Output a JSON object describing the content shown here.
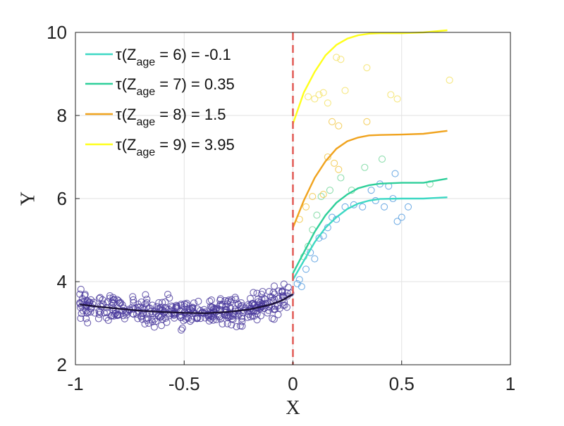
{
  "chart_data": {
    "type": "scatter",
    "xlabel": "X",
    "ylabel": "Y",
    "xlim": [
      -1,
      1
    ],
    "ylim": [
      2,
      10
    ],
    "xticks": [
      -1,
      -0.5,
      0,
      0.5,
      1
    ],
    "yticks": [
      2,
      4,
      6,
      8,
      10
    ],
    "xtick_labels": [
      "-1",
      "-0.5",
      "0",
      "0.5",
      "1"
    ],
    "ytick_labels": [
      "2",
      "4",
      "6",
      "8",
      "10"
    ],
    "grid": true,
    "legend_position": "top-left",
    "cutoff": {
      "x": 0,
      "color": "#e0554f",
      "style": "dashed"
    },
    "control_curve": {
      "color": "#1a1036",
      "points": [
        [
          -0.98,
          3.45
        ],
        [
          -0.9,
          3.4
        ],
        [
          -0.8,
          3.35
        ],
        [
          -0.7,
          3.3
        ],
        [
          -0.6,
          3.27
        ],
        [
          -0.5,
          3.25
        ],
        [
          -0.4,
          3.24
        ],
        [
          -0.3,
          3.27
        ],
        [
          -0.2,
          3.33
        ],
        [
          -0.1,
          3.45
        ],
        [
          -0.05,
          3.55
        ],
        [
          0,
          3.7
        ]
      ]
    },
    "control_scatter": {
      "color": "#4a3a9c",
      "x_range": [
        -0.98,
        -0.01
      ],
      "n": 400,
      "noise": 0.22
    },
    "series": [
      {
        "name_prefix": "τ(Z",
        "name_sub": "age",
        "name_suffix": " = 6) = -0.1",
        "color": "#3dd8c4",
        "points": [
          [
            0.0,
            4.05
          ],
          [
            0.05,
            4.5
          ],
          [
            0.1,
            4.95
          ],
          [
            0.15,
            5.3
          ],
          [
            0.2,
            5.55
          ],
          [
            0.25,
            5.75
          ],
          [
            0.3,
            5.88
          ],
          [
            0.35,
            5.95
          ],
          [
            0.4,
            5.99
          ],
          [
            0.5,
            6.0
          ],
          [
            0.6,
            6.0
          ],
          [
            0.71,
            6.03
          ]
        ]
      },
      {
        "name_prefix": "τ(Z",
        "name_sub": "age",
        "name_suffix": " = 7) = 0.35",
        "color": "#2ecf9a",
        "points": [
          [
            0.0,
            4.2
          ],
          [
            0.05,
            4.7
          ],
          [
            0.1,
            5.2
          ],
          [
            0.15,
            5.6
          ],
          [
            0.2,
            5.9
          ],
          [
            0.25,
            6.1
          ],
          [
            0.3,
            6.25
          ],
          [
            0.35,
            6.32
          ],
          [
            0.4,
            6.36
          ],
          [
            0.5,
            6.38
          ],
          [
            0.6,
            6.38
          ],
          [
            0.71,
            6.48
          ]
        ]
      },
      {
        "name_prefix": "τ(Z",
        "name_sub": "age",
        "name_suffix": " = 8) = 1.5",
        "color": "#f0a31e",
        "points": [
          [
            0.0,
            5.3
          ],
          [
            0.05,
            5.95
          ],
          [
            0.1,
            6.5
          ],
          [
            0.15,
            6.9
          ],
          [
            0.2,
            7.2
          ],
          [
            0.25,
            7.38
          ],
          [
            0.3,
            7.47
          ],
          [
            0.35,
            7.52
          ],
          [
            0.4,
            7.53
          ],
          [
            0.5,
            7.54
          ],
          [
            0.6,
            7.56
          ],
          [
            0.71,
            7.63
          ]
        ]
      },
      {
        "name_prefix": "τ(Z",
        "name_sub": "age",
        "name_suffix": " = 9) = 3.95",
        "color": "#ffff1a",
        "points": [
          [
            0.0,
            7.8
          ],
          [
            0.05,
            8.55
          ],
          [
            0.1,
            9.05
          ],
          [
            0.15,
            9.45
          ],
          [
            0.2,
            9.7
          ],
          [
            0.25,
            9.85
          ],
          [
            0.3,
            9.93
          ],
          [
            0.35,
            9.97
          ],
          [
            0.4,
            9.98
          ],
          [
            0.5,
            9.98
          ],
          [
            0.6,
            10.0
          ],
          [
            0.71,
            10.05
          ]
        ]
      }
    ],
    "treated_scatter": [
      {
        "x": 0.02,
        "y": 3.95,
        "c": "#5aa0e0"
      },
      {
        "x": 0.03,
        "y": 4.05,
        "c": "#5aa0e0"
      },
      {
        "x": 0.04,
        "y": 3.88,
        "c": "#5aa0e0"
      },
      {
        "x": 0.06,
        "y": 4.3,
        "c": "#5aa0e0"
      },
      {
        "x": 0.08,
        "y": 4.7,
        "c": "#5aa0e0"
      },
      {
        "x": 0.1,
        "y": 4.55,
        "c": "#5aa0e0"
      },
      {
        "x": 0.12,
        "y": 5.05,
        "c": "#5aa0e0"
      },
      {
        "x": 0.14,
        "y": 5.1,
        "c": "#5aa0e0"
      },
      {
        "x": 0.16,
        "y": 5.3,
        "c": "#5aa0e0"
      },
      {
        "x": 0.18,
        "y": 5.55,
        "c": "#5aa0e0"
      },
      {
        "x": 0.2,
        "y": 5.5,
        "c": "#5aa0e0"
      },
      {
        "x": 0.24,
        "y": 5.8,
        "c": "#5aa0e0"
      },
      {
        "x": 0.28,
        "y": 5.85,
        "c": "#5aa0e0"
      },
      {
        "x": 0.32,
        "y": 5.8,
        "c": "#5aa0e0"
      },
      {
        "x": 0.36,
        "y": 6.2,
        "c": "#5aa0e0"
      },
      {
        "x": 0.38,
        "y": 5.95,
        "c": "#5aa0e0"
      },
      {
        "x": 0.42,
        "y": 5.8,
        "c": "#5aa0e0"
      },
      {
        "x": 0.46,
        "y": 6.0,
        "c": "#5aa0e0"
      },
      {
        "x": 0.48,
        "y": 5.45,
        "c": "#5aa0e0"
      },
      {
        "x": 0.5,
        "y": 5.55,
        "c": "#5aa0e0"
      },
      {
        "x": 0.53,
        "y": 5.8,
        "c": "#5aa0e0"
      },
      {
        "x": 0.4,
        "y": 6.35,
        "c": "#5aa0e0"
      },
      {
        "x": 0.44,
        "y": 6.3,
        "c": "#5aa0e0"
      },
      {
        "x": 0.47,
        "y": 6.6,
        "c": "#5aa0e0"
      },
      {
        "x": 0.05,
        "y": 4.6,
        "c": "#7ad8a0"
      },
      {
        "x": 0.07,
        "y": 4.85,
        "c": "#7ad8a0"
      },
      {
        "x": 0.09,
        "y": 5.25,
        "c": "#7ad8a0"
      },
      {
        "x": 0.11,
        "y": 5.6,
        "c": "#7ad8a0"
      },
      {
        "x": 0.13,
        "y": 6.05,
        "c": "#7ad8a0"
      },
      {
        "x": 0.17,
        "y": 6.2,
        "c": "#7ad8a0"
      },
      {
        "x": 0.22,
        "y": 6.5,
        "c": "#7ad8a0"
      },
      {
        "x": 0.27,
        "y": 6.2,
        "c": "#7ad8a0"
      },
      {
        "x": 0.33,
        "y": 6.75,
        "c": "#7ad8a0"
      },
      {
        "x": 0.41,
        "y": 6.95,
        "c": "#7ad8a0"
      },
      {
        "x": 0.63,
        "y": 6.35,
        "c": "#7ad8a0"
      },
      {
        "x": 0.03,
        "y": 5.5,
        "c": "#f2c94c"
      },
      {
        "x": 0.06,
        "y": 5.8,
        "c": "#f2c94c"
      },
      {
        "x": 0.09,
        "y": 6.05,
        "c": "#f2c94c"
      },
      {
        "x": 0.14,
        "y": 6.1,
        "c": "#f2c94c"
      },
      {
        "x": 0.16,
        "y": 7.0,
        "c": "#f2c94c"
      },
      {
        "x": 0.19,
        "y": 6.85,
        "c": "#f2c94c"
      },
      {
        "x": 0.21,
        "y": 6.7,
        "c": "#f2c94c"
      },
      {
        "x": 0.18,
        "y": 7.85,
        "c": "#f2c94c"
      },
      {
        "x": 0.21,
        "y": 7.75,
        "c": "#f2c94c"
      },
      {
        "x": 0.34,
        "y": 7.85,
        "c": "#f2c94c"
      },
      {
        "x": 0.07,
        "y": 8.45,
        "c": "#f5e36a"
      },
      {
        "x": 0.1,
        "y": 8.4,
        "c": "#f5e36a"
      },
      {
        "x": 0.12,
        "y": 8.5,
        "c": "#f5e36a"
      },
      {
        "x": 0.14,
        "y": 8.55,
        "c": "#f5e36a"
      },
      {
        "x": 0.16,
        "y": 8.3,
        "c": "#f5e36a"
      },
      {
        "x": 0.2,
        "y": 9.4,
        "c": "#f5e36a"
      },
      {
        "x": 0.22,
        "y": 9.35,
        "c": "#f5e36a"
      },
      {
        "x": 0.24,
        "y": 8.6,
        "c": "#f5e36a"
      },
      {
        "x": 0.34,
        "y": 9.15,
        "c": "#f5e36a"
      },
      {
        "x": 0.45,
        "y": 8.5,
        "c": "#f5e36a"
      },
      {
        "x": 0.48,
        "y": 8.4,
        "c": "#f5e36a"
      },
      {
        "x": 0.72,
        "y": 8.85,
        "c": "#f5e36a"
      }
    ]
  }
}
